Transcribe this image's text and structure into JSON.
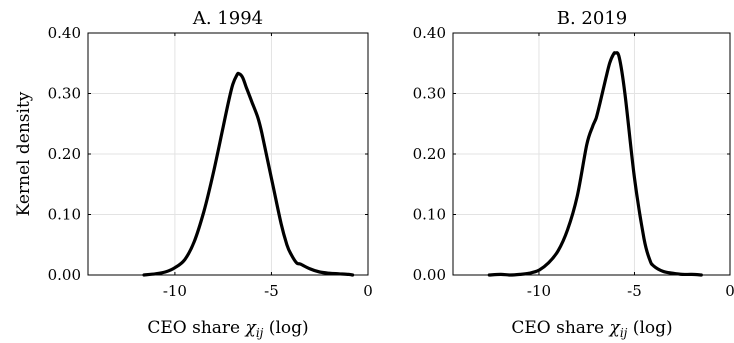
{
  "figure": {
    "ylabel": "Kernel density"
  },
  "chart_data": [
    {
      "type": "line",
      "title": "A. 1994",
      "xlabel": "CEO share χ_ij (log)",
      "xlabel_main": "CEO share ",
      "xlabel_symbol": "χ",
      "xlabel_sub": "ij",
      "xlabel_tail": " (log)",
      "ylabel": "Kernel density",
      "xlim": [
        -14.5,
        0
      ],
      "ylim": [
        0,
        0.4
      ],
      "xticks": [
        -10,
        -5,
        0
      ],
      "xtick_labels": [
        "-10",
        "-5",
        "0"
      ],
      "yticks": [
        0,
        0.1,
        0.2,
        0.3,
        0.4
      ],
      "ytick_labels": [
        "0.00",
        "0.10",
        "0.20",
        "0.30",
        "0.40"
      ],
      "grid": true,
      "series": [
        {
          "x": [
            -11.6,
            -11.0,
            -10.5,
            -10.0,
            -9.5,
            -9.0,
            -8.5,
            -8.0,
            -7.5,
            -7.2,
            -7.0,
            -6.8,
            -6.7,
            -6.5,
            -6.3,
            -6.0,
            -5.7,
            -5.5,
            -5.0,
            -4.5,
            -4.2,
            -4.0,
            -3.7,
            -3.5,
            -3.0,
            -2.5,
            -2.0,
            -1.5,
            -1.0,
            -0.8
          ],
          "y": [
            0.0,
            0.002,
            0.005,
            0.012,
            0.025,
            0.055,
            0.105,
            0.17,
            0.245,
            0.29,
            0.315,
            0.33,
            0.333,
            0.327,
            0.31,
            0.285,
            0.26,
            0.235,
            0.16,
            0.085,
            0.05,
            0.035,
            0.02,
            0.018,
            0.01,
            0.005,
            0.003,
            0.002,
            0.001,
            0.0
          ]
        }
      ]
    },
    {
      "type": "line",
      "title": "B. 2019",
      "xlabel": "CEO share χ_ij (log)",
      "xlabel_main": "CEO share ",
      "xlabel_symbol": "χ",
      "xlabel_sub": "ij",
      "xlabel_tail": " (log)",
      "ylabel": "",
      "xlim": [
        -14.5,
        0
      ],
      "ylim": [
        0,
        0.4
      ],
      "xticks": [
        -10,
        -5,
        0
      ],
      "xtick_labels": [
        "-10",
        "-5",
        "0"
      ],
      "yticks": [
        0,
        0.1,
        0.2,
        0.3,
        0.4
      ],
      "ytick_labels": [
        "0.00",
        "0.10",
        "0.20",
        "0.30",
        "0.40"
      ],
      "grid": true,
      "series": [
        {
          "x": [
            -12.6,
            -12.0,
            -11.5,
            -11.0,
            -10.5,
            -10.0,
            -9.5,
            -9.0,
            -8.5,
            -8.0,
            -7.5,
            -7.2,
            -7.0,
            -6.8,
            -6.5,
            -6.3,
            -6.1,
            -6.0,
            -5.8,
            -5.5,
            -5.0,
            -4.5,
            -4.2,
            -4.0,
            -3.5,
            -3.0,
            -2.5,
            -2.0,
            -1.5
          ],
          "y": [
            0.0,
            0.001,
            0.0,
            0.001,
            0.003,
            0.008,
            0.02,
            0.04,
            0.075,
            0.13,
            0.215,
            0.245,
            0.26,
            0.285,
            0.325,
            0.35,
            0.365,
            0.367,
            0.36,
            0.3,
            0.16,
            0.06,
            0.025,
            0.015,
            0.006,
            0.003,
            0.001,
            0.001,
            0.0
          ]
        }
      ]
    }
  ]
}
